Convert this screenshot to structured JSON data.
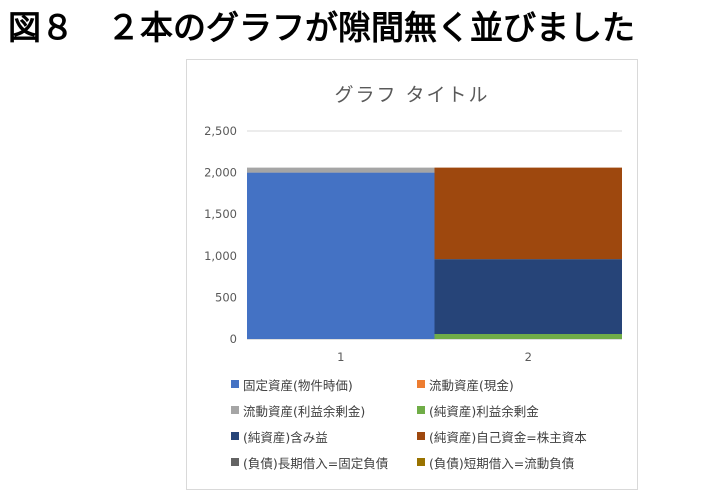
{
  "page": {
    "heading": "図８　２本のグラフが隙間無く並びました"
  },
  "chart_data": {
    "type": "bar",
    "stacked": true,
    "title": "グラフ タイトル",
    "categories": [
      "1",
      "2"
    ],
    "ylim": [
      0,
      2500
    ],
    "yticks": [
      "0",
      "500",
      "1,000",
      "1,500",
      "2,000",
      "2,500"
    ],
    "ytick_values": [
      0,
      500,
      1000,
      1500,
      2000,
      2500
    ],
    "grid": true,
    "legend_position": "bottom",
    "series": [
      {
        "name": "固定資産(物件時価)",
        "color": "#4472c4",
        "values": [
          2000,
          0
        ]
      },
      {
        "name": "流動資産(現金)",
        "color": "#ed7d31",
        "values": [
          0,
          0
        ]
      },
      {
        "name": "流動資産(利益余剰金)",
        "color": "#a5a5a5",
        "values": [
          60,
          0
        ]
      },
      {
        "name": "(純資産)利益余剰金",
        "color": "#70ad47",
        "values": [
          0,
          60
        ]
      },
      {
        "name": "(純資産)含み益",
        "color": "#264478",
        "values": [
          0,
          900
        ]
      },
      {
        "name": "(純資産)自己資金=株主資本",
        "color": "#9e480e",
        "values": [
          0,
          1100
        ]
      },
      {
        "name": "(負債)長期借入=固定負債",
        "color": "#636363",
        "values": [
          0,
          0
        ]
      },
      {
        "name": "(負債)短期借入=流動負債",
        "color": "#997300",
        "values": [
          0,
          0
        ]
      }
    ]
  }
}
